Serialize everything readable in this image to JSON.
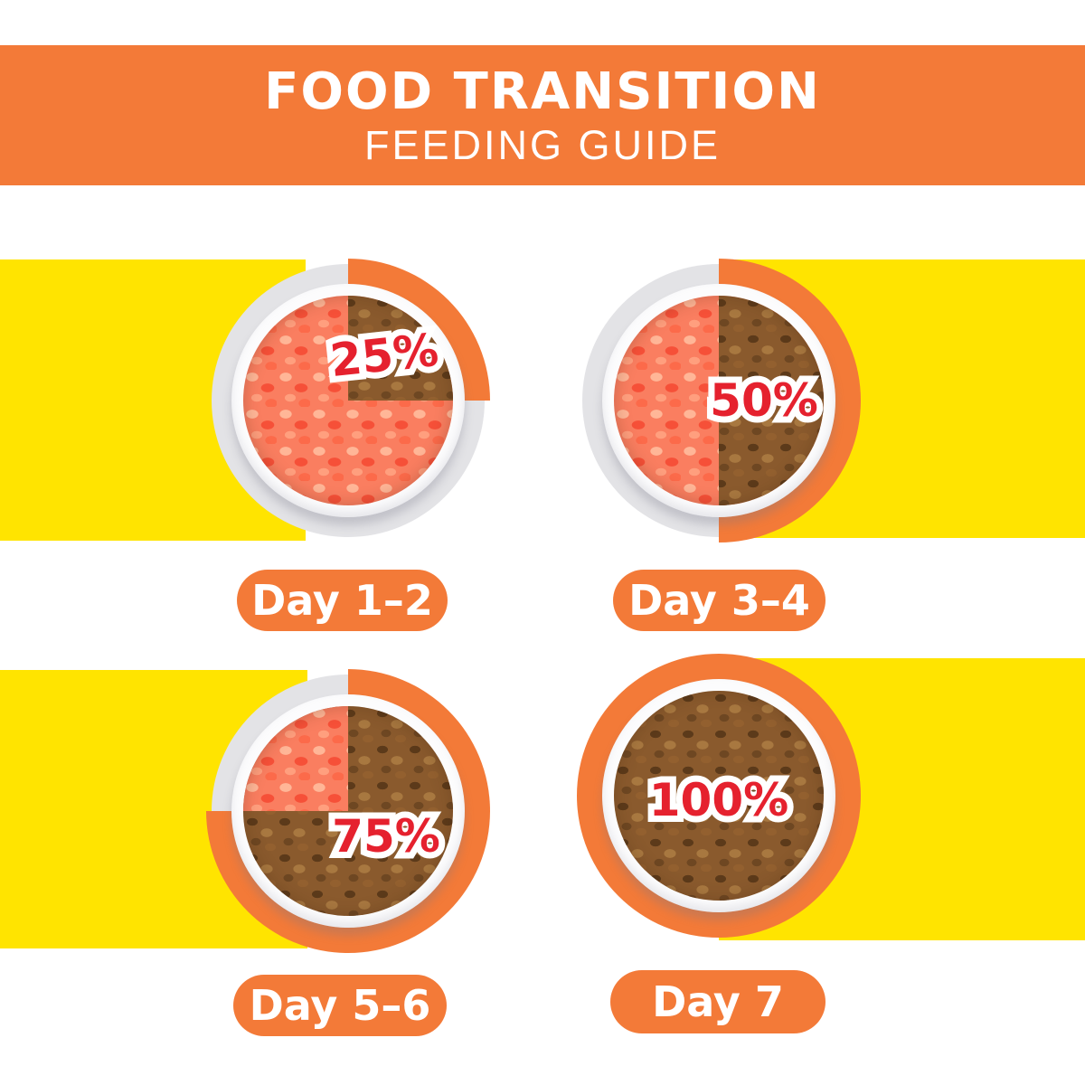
{
  "header": {
    "title": "FOOD TRANSITION",
    "subtitle": "FEEDING GUIDE"
  },
  "steps": [
    {
      "percent": 25,
      "percent_label": "25%",
      "day_label": "Day 1–2",
      "new_food_portion": "top-right quarter",
      "band_side": "left"
    },
    {
      "percent": 50,
      "percent_label": "50%",
      "day_label": "Day 3–4",
      "new_food_portion": "right half",
      "band_side": "right"
    },
    {
      "percent": 75,
      "percent_label": "75%",
      "day_label": "Day 5–6",
      "new_food_portion": "all but top-left quarter",
      "band_side": "left"
    },
    {
      "percent": 100,
      "percent_label": "100%",
      "day_label": "Day 7",
      "new_food_portion": "full bowl",
      "band_side": "right"
    }
  ],
  "colors": {
    "orange": "#F37A38",
    "yellow": "#FFE400",
    "red": "#E5212E",
    "ring_gray": "#E3E3E6",
    "plate_white": "#FCFCFD",
    "new_food_brown": "#8A5A2D",
    "old_food_pink": "#FA7E60"
  }
}
